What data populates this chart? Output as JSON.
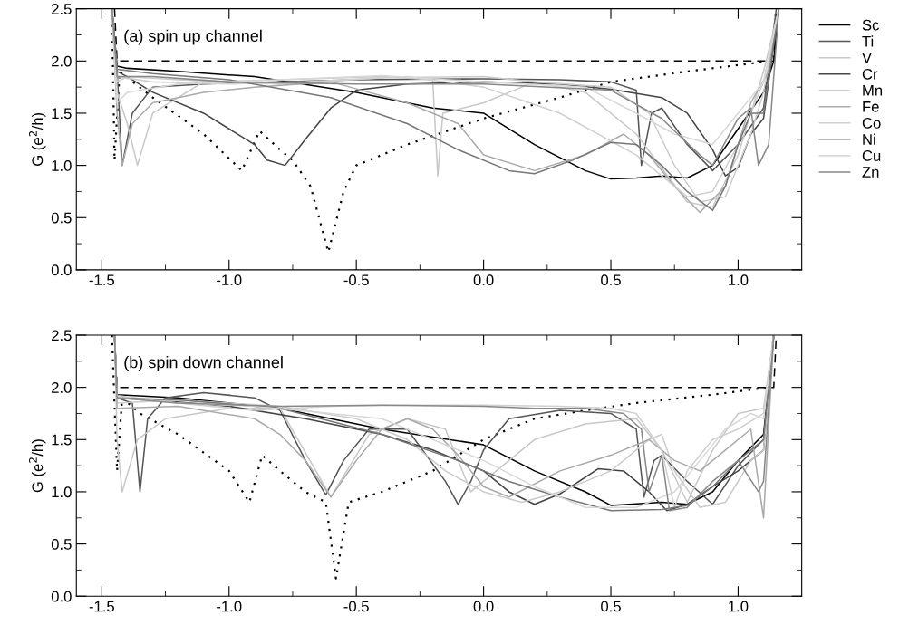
{
  "chart_data": [
    {
      "type": "line",
      "ylabel": "G (e$^{2}$/h)",
      "annotations": [
        "(a) spin up channel"
      ],
      "xlim": [
        -1.6,
        1.25
      ],
      "ylim": [
        0,
        2.5
      ],
      "xticks": [
        -1.5,
        {
          "value": -1.25,
          "label": null
        },
        {
          "value": -1,
          "label": "-1.0"
        },
        {
          "value": -0.75,
          "label": null
        },
        -0.5,
        {
          "value": -0.25,
          "label": null
        },
        {
          "value": 0,
          "label": "0.0"
        },
        {
          "value": 0.25,
          "label": null
        },
        0.5,
        {
          "value": 0.75,
          "label": null
        },
        {
          "value": 1,
          "label": "1.0"
        }
      ],
      "yticks": [
        {
          "value": 0,
          "label": "0.0"
        },
        {
          "value": 0.25,
          "label": null
        },
        0.5,
        {
          "value": 0.75,
          "label": null
        },
        {
          "value": 1,
          "label": "1.0"
        },
        {
          "value": 1.25,
          "label": null
        },
        1.5,
        {
          "value": 1.75,
          "label": null
        },
        {
          "value": 2,
          "label": "2.0"
        },
        {
          "value": 2.25,
          "label": null
        },
        2.5
      ],
      "grid": false,
      "legend": "right",
      "tick_labels": "xy",
      "series": [
        {
          "color": "#000000",
          "line_style": "dashed",
          "x": [
            -1.45,
            -1.44,
            1.14,
            1.15
          ],
          "values": [
            2.5,
            2.0,
            2.0,
            2.5
          ]
        },
        {
          "color": "#000000",
          "line_style": "dotted",
          "x": [
            -1.46,
            -1.45,
            -1.43,
            -1.3,
            -1.1,
            -0.95,
            -0.88,
            -0.8,
            -0.75,
            -0.68,
            -0.61,
            -0.55,
            -0.5,
            -0.3,
            0.0,
            0.3,
            0.5,
            0.8,
            1.13,
            1.15
          ],
          "values": [
            2.5,
            1.05,
            1.9,
            1.65,
            1.3,
            0.95,
            1.33,
            1.15,
            1.05,
            0.8,
            0.17,
            0.75,
            1.0,
            1.2,
            1.45,
            1.65,
            1.8,
            1.9,
            2.0,
            2.5
          ]
        },
        {
          "name": "Sc",
          "color": "#000000",
          "line_style": "solid",
          "x": [
            -1.46,
            -1.44,
            -1.4,
            -1.2,
            -0.9,
            -0.5,
            -0.2,
            0.0,
            0.2,
            0.4,
            0.5,
            0.6,
            0.7,
            0.8,
            0.9,
            1.0,
            1.1,
            1.14,
            1.16
          ],
          "values": [
            2.5,
            1.95,
            1.93,
            1.9,
            1.85,
            1.7,
            1.55,
            1.5,
            1.2,
            0.95,
            0.87,
            0.88,
            0.9,
            0.88,
            1.0,
            1.35,
            1.7,
            2.0,
            2.5
          ]
        },
        {
          "name": "Ti",
          "color": "#555555",
          "line_style": "solid",
          "x": [
            -1.46,
            -1.44,
            -1.42,
            -1.38,
            -1.3,
            -1.1,
            -0.8,
            -0.5,
            0.0,
            0.3,
            0.5,
            0.6,
            0.62,
            0.66,
            0.7,
            0.8,
            0.9,
            1.0,
            1.1,
            1.15
          ],
          "values": [
            2.5,
            1.9,
            1.0,
            1.5,
            1.75,
            1.78,
            1.8,
            1.82,
            1.83,
            1.82,
            1.8,
            1.72,
            1.0,
            1.5,
            1.55,
            1.2,
            0.95,
            1.2,
            1.55,
            2.5
          ]
        },
        {
          "name": "V",
          "color": "#c8c8c8",
          "line_style": "solid",
          "x": [
            -1.46,
            -1.44,
            -1.4,
            -1.36,
            -1.3,
            -1.1,
            -0.8,
            -0.4,
            -0.2,
            -0.18,
            -0.16,
            0.0,
            0.2,
            0.4,
            0.6,
            0.8,
            0.9,
            1.0,
            1.1,
            1.16
          ],
          "values": [
            2.5,
            1.7,
            1.4,
            1.0,
            1.5,
            1.8,
            1.82,
            1.85,
            1.82,
            0.9,
            1.5,
            1.6,
            1.8,
            1.7,
            1.3,
            0.65,
            0.6,
            1.1,
            1.9,
            2.5
          ]
        },
        {
          "name": "Cr",
          "color": "#444444",
          "line_style": "solid",
          "x": [
            -1.46,
            -1.44,
            -1.4,
            -1.3,
            -1.1,
            -0.9,
            -0.85,
            -0.78,
            -0.7,
            -0.6,
            -0.5,
            -0.3,
            0.0,
            0.3,
            0.5,
            0.7,
            0.8,
            0.9,
            0.95,
            1.0,
            1.05,
            1.1,
            1.16
          ],
          "values": [
            2.5,
            1.9,
            1.85,
            1.7,
            1.5,
            1.2,
            1.05,
            1.0,
            1.25,
            1.55,
            1.72,
            1.78,
            1.8,
            1.78,
            1.73,
            1.65,
            1.5,
            1.15,
            0.9,
            0.98,
            1.3,
            1.45,
            2.5
          ]
        },
        {
          "name": "Mn",
          "color": "#cccccc",
          "line_style": "solid",
          "x": [
            -1.46,
            -1.44,
            -1.4,
            -1.2,
            -0.8,
            -0.4,
            0.0,
            0.2,
            0.5,
            0.65,
            0.75,
            0.85,
            0.95,
            1.05,
            1.1,
            1.16
          ],
          "values": [
            2.5,
            1.8,
            1.85,
            1.82,
            1.78,
            1.84,
            1.85,
            1.8,
            1.75,
            1.5,
            1.0,
            0.65,
            0.7,
            1.3,
            1.7,
            2.5
          ]
        },
        {
          "name": "Fe",
          "color": "#aaaaaa",
          "line_style": "solid",
          "x": [
            -1.46,
            -1.44,
            -1.42,
            -1.38,
            -1.3,
            -1.1,
            -0.9,
            -0.6,
            -0.3,
            -0.1,
            0.0,
            0.2,
            0.4,
            0.55,
            0.65,
            0.75,
            0.85,
            0.95,
            1.05,
            1.12,
            1.16
          ],
          "values": [
            2.5,
            1.5,
            1.0,
            1.4,
            1.6,
            1.7,
            1.75,
            1.8,
            1.6,
            1.4,
            1.1,
            0.95,
            1.1,
            1.3,
            1.1,
            0.8,
            0.55,
            0.8,
            1.6,
            1.9,
            2.5
          ]
        },
        {
          "name": "Co",
          "color": "#d0d0d0",
          "line_style": "solid",
          "x": [
            -1.46,
            -1.44,
            -1.3,
            -1.0,
            -0.7,
            -0.3,
            0.0,
            0.3,
            0.6,
            0.7,
            0.8,
            0.9,
            1.0,
            1.1,
            1.16
          ],
          "values": [
            2.5,
            1.85,
            1.8,
            1.78,
            1.8,
            1.85,
            1.75,
            1.5,
            1.1,
            0.9,
            0.7,
            0.75,
            1.2,
            1.8,
            2.5
          ]
        },
        {
          "name": "Ni",
          "color": "#777777",
          "line_style": "solid",
          "x": [
            -1.46,
            -1.44,
            -1.3,
            -1.0,
            -0.6,
            -0.3,
            -0.1,
            0.1,
            0.2,
            0.35,
            0.5,
            0.6,
            0.7,
            0.8,
            0.9,
            0.95,
            1.0,
            1.05,
            1.1,
            1.16
          ],
          "values": [
            2.5,
            1.92,
            1.88,
            1.82,
            1.65,
            1.4,
            1.15,
            0.95,
            0.92,
            1.05,
            1.22,
            1.2,
            1.0,
            0.75,
            0.57,
            0.8,
            1.2,
            1.5,
            1.5,
            2.5
          ]
        },
        {
          "name": "Cu",
          "color": "#d8d8d8",
          "line_style": "solid",
          "x": [
            -1.46,
            -1.44,
            -1.4,
            -1.2,
            -0.8,
            -0.4,
            0.0,
            0.4,
            0.6,
            0.75,
            0.9,
            1.0,
            1.1,
            1.16
          ],
          "values": [
            2.5,
            1.6,
            1.7,
            1.78,
            1.82,
            1.86,
            1.8,
            1.75,
            1.5,
            1.3,
            1.2,
            1.5,
            1.8,
            2.5
          ]
        },
        {
          "name": "Zn",
          "color": "#888888",
          "line_style": "solid",
          "x": [
            -1.46,
            -1.44,
            -1.3,
            -1.0,
            -0.5,
            0.0,
            0.5,
            0.7,
            0.75,
            0.85,
            0.9,
            1.0,
            1.05,
            1.08,
            1.12,
            1.16
          ],
          "values": [
            2.5,
            1.85,
            1.85,
            1.8,
            1.78,
            1.78,
            1.72,
            1.45,
            1.33,
            1.1,
            1.0,
            1.45,
            1.55,
            1.0,
            1.2,
            2.5
          ]
        }
      ]
    },
    {
      "type": "line",
      "ylabel": "G (e$^{2}$/h)",
      "annotations": [
        "(b) spin down channel"
      ],
      "xlim": [
        -1.6,
        1.25
      ],
      "ylim": [
        0,
        2.5
      ],
      "xticks": [
        -1.5,
        {
          "value": -1.25,
          "label": null
        },
        {
          "value": -1,
          "label": "-1.0"
        },
        {
          "value": -0.75,
          "label": null
        },
        -0.5,
        {
          "value": -0.25,
          "label": null
        },
        {
          "value": 0,
          "label": "0.0"
        },
        {
          "value": 0.25,
          "label": null
        },
        0.5,
        {
          "value": 0.75,
          "label": null
        },
        {
          "value": 1,
          "label": "1.0"
        }
      ],
      "yticks": [
        {
          "value": 0,
          "label": "0.0"
        },
        {
          "value": 0.25,
          "label": null
        },
        0.5,
        {
          "value": 0.75,
          "label": null
        },
        {
          "value": 1,
          "label": "1.0"
        },
        {
          "value": 1.25,
          "label": null
        },
        1.5,
        {
          "value": 1.75,
          "label": null
        },
        {
          "value": 2,
          "label": "2.0"
        },
        {
          "value": 2.25,
          "label": null
        },
        2.5
      ],
      "grid": false,
      "legend": false,
      "tick_labels": "xy",
      "series": [
        {
          "color": "#000000",
          "line_style": "dashed",
          "x": [
            -1.45,
            -1.44,
            1.14,
            1.15
          ],
          "values": [
            2.5,
            2.0,
            2.0,
            2.5
          ]
        },
        {
          "color": "#000000",
          "line_style": "dotted",
          "x": [
            -1.46,
            -1.44,
            -1.42,
            -1.35,
            -1.2,
            -1.0,
            -0.92,
            -0.87,
            -0.8,
            -0.7,
            -0.62,
            -0.58,
            -0.53,
            -0.4,
            -0.2,
            0.0,
            0.2,
            0.4,
            0.6,
            0.9,
            1.12,
            1.14
          ],
          "values": [
            2.5,
            1.2,
            1.9,
            1.75,
            1.55,
            1.2,
            0.9,
            1.35,
            1.2,
            1.0,
            0.9,
            0.17,
            0.9,
            1.0,
            1.2,
            1.5,
            1.7,
            1.78,
            1.85,
            1.93,
            2.0,
            2.5
          ]
        },
        {
          "color": "#000000",
          "line_style": "solid",
          "x": [
            -1.45,
            -1.44,
            -1.2,
            -0.8,
            -0.4,
            0.0,
            0.2,
            0.4,
            0.5,
            0.7,
            0.8,
            0.9,
            1.0,
            1.1,
            1.14
          ],
          "values": [
            2.5,
            1.93,
            1.9,
            1.8,
            1.6,
            1.45,
            1.2,
            1.0,
            0.87,
            0.9,
            0.88,
            1.0,
            1.3,
            1.55,
            2.5
          ]
        },
        {
          "color": "#555555",
          "line_style": "solid",
          "x": [
            -1.45,
            -1.44,
            -1.38,
            -1.35,
            -1.32,
            -1.25,
            -1.1,
            -0.9,
            -0.8,
            -0.7,
            -0.62,
            -0.55,
            -0.45,
            -0.3,
            -0.15,
            -0.1,
            -0.05,
            0.0,
            0.1,
            0.3,
            0.5,
            0.6,
            0.63,
            0.67,
            0.7,
            0.8,
            0.9,
            1.0,
            1.1,
            1.14
          ],
          "values": [
            2.5,
            1.9,
            1.85,
            1.0,
            1.7,
            1.9,
            1.95,
            1.9,
            1.78,
            1.3,
            0.97,
            1.3,
            1.6,
            1.6,
            1.1,
            0.88,
            1.1,
            1.4,
            1.7,
            1.78,
            1.75,
            1.6,
            0.95,
            1.3,
            1.35,
            1.1,
            0.88,
            1.25,
            1.5,
            2.5
          ]
        },
        {
          "color": "#c8c8c8",
          "line_style": "solid",
          "x": [
            -1.45,
            -1.44,
            -1.42,
            -1.36,
            -1.25,
            -1.0,
            -0.8,
            -0.6,
            -0.45,
            -0.3,
            -0.15,
            -0.05,
            0.05,
            0.2,
            0.4,
            0.6,
            0.7,
            0.8,
            0.9,
            1.0,
            1.1,
            1.14
          ],
          "values": [
            2.5,
            1.5,
            1.0,
            1.5,
            1.7,
            1.8,
            1.8,
            0.95,
            1.55,
            1.7,
            1.6,
            1.0,
            1.2,
            1.5,
            1.65,
            1.7,
            1.4,
            0.9,
            1.4,
            1.75,
            1.8,
            2.5
          ]
        },
        {
          "color": "#444444",
          "line_style": "solid",
          "x": [
            -1.45,
            -1.44,
            -1.3,
            -1.0,
            -0.7,
            -0.4,
            -0.2,
            0.0,
            0.1,
            0.2,
            0.3,
            0.45,
            0.55,
            0.65,
            0.72,
            0.8,
            0.9,
            1.0,
            1.1,
            1.14
          ],
          "values": [
            2.5,
            1.9,
            1.88,
            1.82,
            1.7,
            1.55,
            1.4,
            1.2,
            1.0,
            0.88,
            0.98,
            1.22,
            1.2,
            1.0,
            0.82,
            0.88,
            1.05,
            1.2,
            1.4,
            2.5
          ]
        },
        {
          "color": "#cccccc",
          "line_style": "solid",
          "x": [
            -1.45,
            -1.44,
            -1.2,
            -0.8,
            -0.5,
            -0.3,
            -0.15,
            0.0,
            0.15,
            0.3,
            0.5,
            0.65,
            0.7,
            0.75,
            0.85,
            0.95,
            1.05,
            1.1,
            1.14
          ],
          "values": [
            2.5,
            1.85,
            1.88,
            1.82,
            1.7,
            1.5,
            1.2,
            1.0,
            0.9,
            1.0,
            1.2,
            1.5,
            1.55,
            1.2,
            0.85,
            0.9,
            1.3,
            1.4,
            2.5
          ]
        },
        {
          "color": "#aaaaaa",
          "line_style": "solid",
          "x": [
            -1.45,
            -1.44,
            -1.2,
            -0.9,
            -0.8,
            -0.7,
            -0.6,
            -0.5,
            -0.4,
            -0.3,
            -0.2,
            -0.1,
            0.0,
            0.1,
            0.3,
            0.5,
            0.65,
            0.75,
            0.85,
            0.95,
            1.05,
            1.1,
            1.14
          ],
          "values": [
            2.5,
            1.8,
            1.82,
            1.7,
            1.55,
            1.3,
            0.95,
            1.3,
            1.6,
            1.7,
            1.6,
            1.35,
            1.05,
            0.95,
            1.2,
            1.35,
            1.5,
            1.3,
            1.2,
            1.4,
            1.6,
            0.75,
            2.5
          ]
        },
        {
          "color": "#d0d0d0",
          "line_style": "solid",
          "x": [
            -1.45,
            -1.44,
            -1.2,
            -0.9,
            -0.6,
            -0.3,
            0.0,
            0.3,
            0.5,
            0.6,
            0.7,
            0.75,
            0.8,
            0.9,
            1.0,
            1.1,
            1.14
          ],
          "values": [
            2.5,
            1.92,
            1.85,
            1.78,
            1.82,
            1.83,
            1.83,
            1.82,
            1.8,
            1.75,
            1.4,
            0.85,
            1.2,
            1.5,
            1.6,
            1.75,
            2.5
          ]
        },
        {
          "color": "#777777",
          "line_style": "solid",
          "x": [
            -1.45,
            -1.44,
            -1.2,
            -0.8,
            -0.4,
            -0.1,
            0.1,
            0.3,
            0.5,
            0.7,
            0.8,
            0.9,
            1.0,
            1.1,
            1.14
          ],
          "values": [
            2.5,
            1.9,
            1.88,
            1.8,
            1.55,
            1.3,
            1.1,
            0.95,
            0.82,
            0.83,
            0.87,
            1.05,
            1.3,
            1.5,
            2.5
          ]
        },
        {
          "color": "#d8d8d8",
          "line_style": "solid",
          "x": [
            -1.45,
            -1.44,
            -1.2,
            -0.9,
            -0.6,
            -0.4,
            -0.2,
            0.0,
            0.2,
            0.4,
            0.6,
            0.75,
            0.85,
            0.95,
            1.05,
            1.1,
            1.14
          ],
          "values": [
            2.5,
            1.9,
            1.85,
            1.82,
            1.75,
            1.7,
            1.5,
            1.3,
            1.05,
            0.85,
            0.85,
            1.0,
            1.3,
            1.6,
            1.75,
            1.7,
            2.5
          ]
        },
        {
          "color": "#888888",
          "line_style": "solid",
          "x": [
            -1.45,
            -1.44,
            -1.2,
            -0.8,
            -0.4,
            0.0,
            0.2,
            0.4,
            0.55,
            0.62,
            0.65,
            0.7,
            0.73,
            0.8,
            0.9,
            1.0,
            1.08,
            1.1,
            1.14
          ],
          "values": [
            2.5,
            1.9,
            1.85,
            1.82,
            1.83,
            1.82,
            1.8,
            1.8,
            1.75,
            1.6,
            1.0,
            1.35,
            0.82,
            0.85,
            1.1,
            1.3,
            1.0,
            1.1,
            2.5
          ]
        }
      ]
    }
  ]
}
